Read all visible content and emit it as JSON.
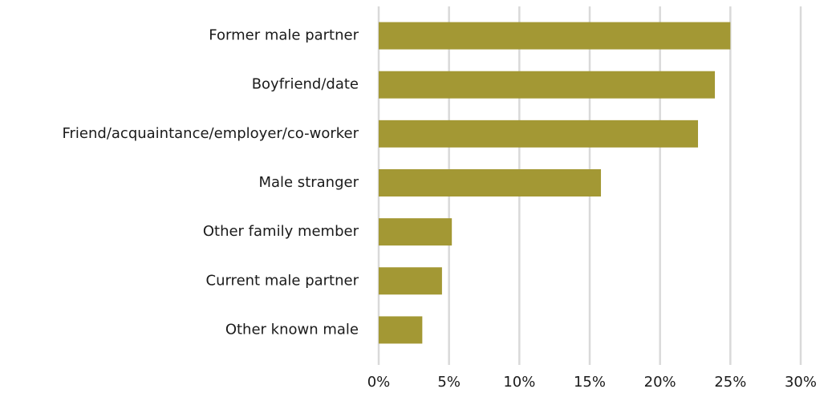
{
  "chart_data": {
    "type": "bar",
    "orientation": "horizontal",
    "categories": [
      "Former male partner",
      "Boyfriend/date",
      "Friend/acquaintance/employer/co-worker",
      "Male stranger",
      "Other family member",
      "Current male partner",
      "Other known male"
    ],
    "values": [
      25.0,
      23.9,
      22.7,
      15.8,
      5.2,
      4.5,
      3.1
    ],
    "color": "#a39834",
    "xlim": [
      0,
      30
    ],
    "xticks": [
      {
        "value": 0,
        "label": "0%"
      },
      {
        "value": 5,
        "label": "5%"
      },
      {
        "value": 10,
        "label": "10%"
      },
      {
        "value": 15,
        "label": "15%"
      },
      {
        "value": 20,
        "label": "20%"
      },
      {
        "value": 25,
        "label": "25%"
      },
      {
        "value": 30,
        "label": "30%"
      }
    ],
    "grid": true
  }
}
